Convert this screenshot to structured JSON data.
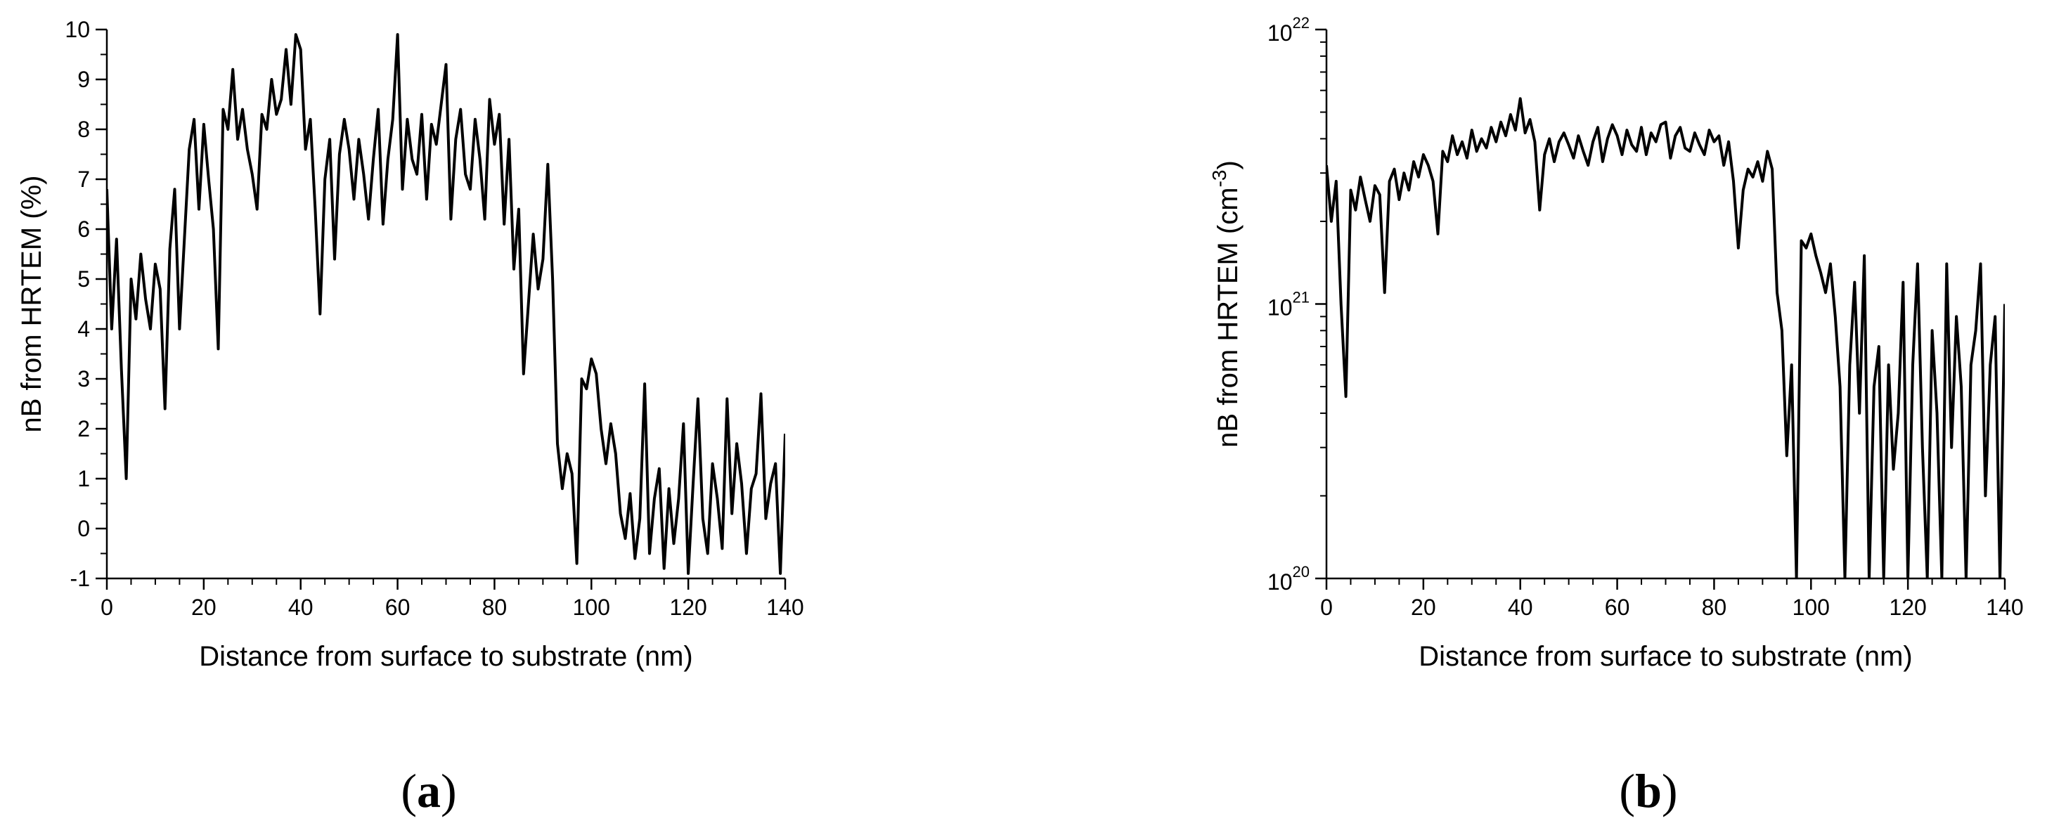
{
  "chart_data": [
    {
      "type": "line",
      "panel_label": {
        "open": "(",
        "letter": "a",
        "close": ")"
      },
      "xlabel": "Distance from surface to substrate (nm)",
      "ylabel": "nB from HRTEM (%)",
      "xlim": [
        0,
        140
      ],
      "ylim": [
        -1,
        10
      ],
      "xticks": [
        0,
        20,
        40,
        60,
        80,
        100,
        120,
        140
      ],
      "yticks": [
        -1,
        0,
        1,
        2,
        3,
        4,
        5,
        6,
        7,
        8,
        9,
        10
      ],
      "yscale": "linear",
      "grid": false,
      "series": [
        {
          "color": "#000000",
          "x": [
            0,
            1,
            2,
            3,
            4,
            5,
            6,
            7,
            8,
            9,
            10,
            11,
            12,
            13,
            14,
            15,
            16,
            17,
            18,
            19,
            20,
            21,
            22,
            23,
            24,
            25,
            26,
            27,
            28,
            29,
            30,
            31,
            32,
            33,
            34,
            35,
            36,
            37,
            38,
            39,
            40,
            41,
            42,
            43,
            44,
            45,
            46,
            47,
            48,
            49,
            50,
            51,
            52,
            53,
            54,
            55,
            56,
            57,
            58,
            59,
            60,
            61,
            62,
            63,
            64,
            65,
            66,
            67,
            68,
            69,
            70,
            71,
            72,
            73,
            74,
            75,
            76,
            77,
            78,
            79,
            80,
            81,
            82,
            83,
            84,
            85,
            86,
            87,
            88,
            89,
            90,
            91,
            92,
            93,
            94,
            95,
            96,
            97,
            98,
            99,
            100,
            101,
            102,
            103,
            104,
            105,
            106,
            107,
            108,
            109,
            110,
            111,
            112,
            113,
            114,
            115,
            116,
            117,
            118,
            119,
            120,
            121,
            122,
            123,
            124,
            125,
            126,
            127,
            128,
            129,
            130,
            131,
            132,
            133,
            134,
            135,
            136,
            137,
            138,
            139,
            140
          ],
          "y": [
            6.8,
            4.0,
            5.8,
            3.2,
            1.0,
            5.0,
            4.2,
            5.5,
            4.6,
            4.0,
            5.3,
            4.8,
            2.4,
            5.6,
            6.8,
            4.0,
            5.8,
            7.6,
            8.2,
            6.4,
            8.1,
            7.0,
            6.0,
            3.6,
            8.4,
            8.0,
            9.2,
            7.8,
            8.4,
            7.6,
            7.1,
            6.4,
            8.3,
            8.0,
            9.0,
            8.3,
            8.6,
            9.6,
            8.5,
            9.9,
            9.6,
            7.6,
            8.2,
            6.4,
            4.3,
            7.0,
            7.8,
            5.4,
            7.5,
            8.2,
            7.6,
            6.6,
            7.8,
            7.1,
            6.2,
            7.4,
            8.4,
            6.1,
            7.4,
            8.2,
            9.9,
            6.8,
            8.2,
            7.4,
            7.1,
            8.3,
            6.6,
            8.1,
            7.7,
            8.5,
            9.3,
            6.2,
            7.8,
            8.4,
            7.1,
            6.8,
            8.2,
            7.4,
            6.2,
            8.6,
            7.7,
            8.3,
            6.1,
            7.8,
            5.2,
            6.4,
            3.1,
            4.5,
            5.9,
            4.8,
            5.4,
            7.3,
            5.0,
            1.7,
            0.8,
            1.5,
            1.1,
            -0.7,
            3.0,
            2.8,
            3.4,
            3.1,
            2.0,
            1.3,
            2.1,
            1.5,
            0.3,
            -0.2,
            0.7,
            -0.6,
            0.2,
            2.9,
            -0.5,
            0.6,
            1.2,
            -0.8,
            0.8,
            -0.3,
            0.6,
            2.1,
            -0.9,
            0.9,
            2.6,
            0.2,
            -0.5,
            1.3,
            0.6,
            -0.4,
            2.6,
            0.3,
            1.7,
            0.9,
            -0.5,
            0.8,
            1.1,
            2.7,
            0.2,
            0.9,
            1.3,
            -0.9,
            1.9
          ]
        }
      ]
    },
    {
      "type": "line",
      "panel_label": {
        "open": "(",
        "letter": "b",
        "close": ")"
      },
      "xlabel": "Distance from surface to substrate (nm)",
      "ylabel": {
        "main": "nB from HRTEM (cm",
        "sup": "-3",
        "end": ")"
      },
      "xlim": [
        0,
        140
      ],
      "ylim": [
        1e+20,
        1e+22
      ],
      "xticks": [
        0,
        20,
        40,
        60,
        80,
        100,
        120,
        140
      ],
      "yticks": [
        {
          "base": "10",
          "exp": "20",
          "value": 1e+20
        },
        {
          "base": "10",
          "exp": "21",
          "value": 1e+21
        },
        {
          "base": "10",
          "exp": "22",
          "value": 1e+22
        }
      ],
      "yscale": "log",
      "grid": false,
      "series": [
        {
          "color": "#000000",
          "x": [
            0,
            1,
            2,
            3,
            4,
            5,
            6,
            7,
            8,
            9,
            10,
            11,
            12,
            13,
            14,
            15,
            16,
            17,
            18,
            19,
            20,
            21,
            22,
            23,
            24,
            25,
            26,
            27,
            28,
            29,
            30,
            31,
            32,
            33,
            34,
            35,
            36,
            37,
            38,
            39,
            40,
            41,
            42,
            43,
            44,
            45,
            46,
            47,
            48,
            49,
            50,
            51,
            52,
            53,
            54,
            55,
            56,
            57,
            58,
            59,
            60,
            61,
            62,
            63,
            64,
            65,
            66,
            67,
            68,
            69,
            70,
            71,
            72,
            73,
            74,
            75,
            76,
            77,
            78,
            79,
            80,
            81,
            82,
            83,
            84,
            85,
            86,
            87,
            88,
            89,
            90,
            91,
            92,
            93,
            94,
            95,
            96,
            97,
            98,
            99,
            100,
            101,
            102,
            103,
            104,
            105,
            106,
            107,
            108,
            109,
            110,
            111,
            112,
            113,
            114,
            115,
            116,
            117,
            118,
            119,
            120,
            121,
            122,
            123,
            124,
            125,
            126,
            127,
            128,
            129,
            130,
            131,
            132,
            133,
            134,
            135,
            136,
            137,
            138,
            139,
            140
          ],
          "y": [
            3.2e+21,
            2e+21,
            2.8e+21,
            1e+21,
            4.6e+20,
            2.6e+21,
            2.2e+21,
            2.9e+21,
            2.4e+21,
            2e+21,
            2.7e+21,
            2.5e+21,
            1.1e+21,
            2.8e+21,
            3.1e+21,
            2.4e+21,
            3e+21,
            2.6e+21,
            3.3e+21,
            2.9e+21,
            3.5e+21,
            3.2e+21,
            2.8e+21,
            1.8e+21,
            3.6e+21,
            3.3e+21,
            4.1e+21,
            3.5e+21,
            3.9e+21,
            3.4e+21,
            4.3e+21,
            3.6e+21,
            4e+21,
            3.7e+21,
            4.4e+21,
            3.9e+21,
            4.6e+21,
            4.1e+21,
            4.9e+21,
            4.3e+21,
            5.6e+21,
            4.2e+21,
            4.7e+21,
            3.9e+21,
            2.2e+21,
            3.5e+21,
            4e+21,
            3.3e+21,
            3.9e+21,
            4.2e+21,
            3.8e+21,
            3.4e+21,
            4.1e+21,
            3.6e+21,
            3.2e+21,
            3.9e+21,
            4.4e+21,
            3.3e+21,
            4e+21,
            4.5e+21,
            4.1e+21,
            3.5e+21,
            4.3e+21,
            3.8e+21,
            3.6e+21,
            4.4e+21,
            3.5e+21,
            4.2e+21,
            3.9e+21,
            4.5e+21,
            4.6e+21,
            3.4e+21,
            4.1e+21,
            4.4e+21,
            3.7e+21,
            3.6e+21,
            4.2e+21,
            3.8e+21,
            3.5e+21,
            4.3e+21,
            3.9e+21,
            4.1e+21,
            3.2e+21,
            3.9e+21,
            2.8e+21,
            1.6e+21,
            2.6e+21,
            3.1e+21,
            2.9e+21,
            3.3e+21,
            2.8e+21,
            3.6e+21,
            3.1e+21,
            1.1e+21,
            8e+20,
            2.8e+20,
            6e+20,
            1e+20,
            1.7e+21,
            1.6e+21,
            1.8e+21,
            1.5e+21,
            1.3e+21,
            1.1e+21,
            1.4e+21,
            9e+20,
            5e+20,
            1e+20,
            6e+20,
            1.2e+21,
            4e+20,
            1.5e+21,
            1e+20,
            5e+20,
            7e+20,
            1e+20,
            6e+20,
            2.5e+20,
            4e+20,
            1.2e+21,
            1e+20,
            6e+20,
            1.4e+21,
            3e+20,
            1e+20,
            8e+20,
            4e+20,
            1e+20,
            1.4e+21,
            3e+20,
            9e+20,
            5e+20,
            1e+20,
            6e+20,
            8e+20,
            1.4e+21,
            2e+20,
            6e+20,
            9e+20,
            1e+20,
            1e+21
          ]
        }
      ]
    }
  ]
}
